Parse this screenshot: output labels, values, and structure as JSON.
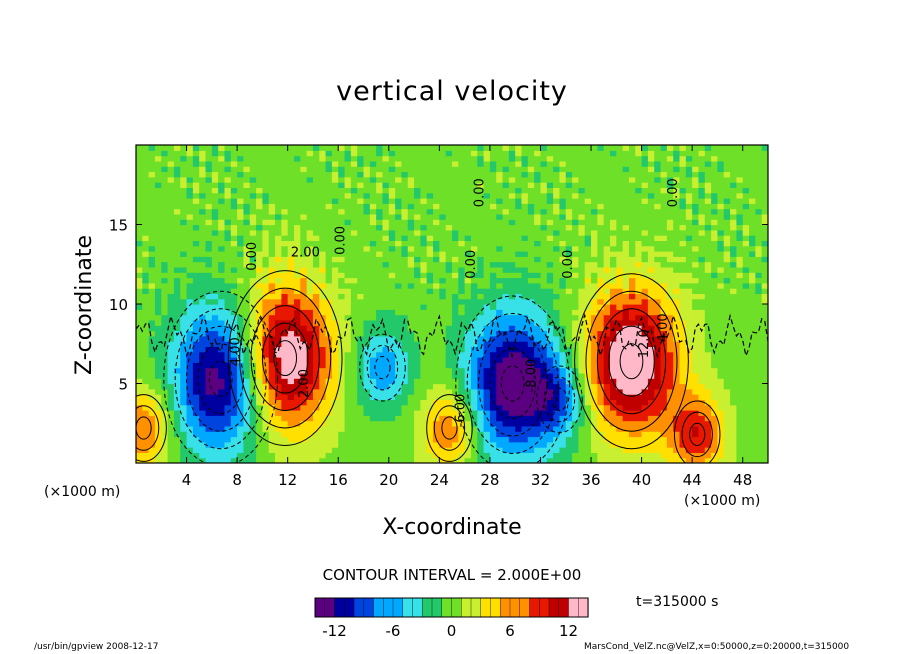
{
  "chart_data": {
    "type": "heatmap",
    "title": "vertical velocity",
    "xlabel": "X-coordinate",
    "ylabel": "Z-coordinate",
    "x_unit_left": "(×1000 m)",
    "x_unit_right": "(×1000 m)",
    "xlim": [
      0,
      50
    ],
    "ylim": [
      0,
      20
    ],
    "x_ticks": [
      4,
      8,
      12,
      16,
      20,
      24,
      28,
      32,
      36,
      40,
      44,
      48
    ],
    "y_ticks": [
      5,
      10,
      15
    ],
    "contour_interval_text": "CONTOUR INTERVAL = 2.000E+00",
    "colorbar": {
      "min": -14,
      "max": 14,
      "ticks": [
        -12,
        -6,
        0,
        6,
        12
      ],
      "colors": [
        "#5a0080",
        "#0000a0",
        "#0044e0",
        "#00a8ff",
        "#38e0e8",
        "#22c86a",
        "#6ee028",
        "#c8f030",
        "#ffe000",
        "#ff9000",
        "#e81800",
        "#c00000",
        "#ffb8c8"
      ]
    },
    "features": [
      {
        "kind": "updraft",
        "x": 11.8,
        "z": 6.6,
        "peak": 15
      },
      {
        "kind": "updraft",
        "x": 39.2,
        "z": 6.4,
        "peak": 15
      },
      {
        "kind": "downdraft",
        "x": 6.7,
        "z": 5.3,
        "peak": -14
      },
      {
        "kind": "downdraft",
        "x": 29.8,
        "z": 5.0,
        "peak": -14
      },
      {
        "kind": "downdraft",
        "x": 19.5,
        "z": 6.0,
        "peak": -7
      },
      {
        "kind": "downdraft",
        "x": 33.5,
        "z": 4.0,
        "peak": -6
      },
      {
        "kind": "updraft",
        "x": 0.6,
        "z": 2.2,
        "peak": 8
      },
      {
        "kind": "updraft",
        "x": 24.8,
        "z": 2.2,
        "peak": 8
      },
      {
        "kind": "updraft",
        "x": 44.4,
        "z": 1.8,
        "peak": 9
      }
    ],
    "contour_labels": [
      {
        "text": "4.00",
        "x": 8.2,
        "z": 7.0,
        "angle": 90
      },
      {
        "text": "2.00",
        "x": 13.6,
        "z": 5.0,
        "angle": 90
      },
      {
        "text": "2.00",
        "x": 13.4,
        "z": 13.0,
        "angle": 0
      },
      {
        "text": "0.00",
        "x": 9.5,
        "z": 13.0,
        "angle": 90
      },
      {
        "text": "0.00",
        "x": 16.5,
        "z": 14.0,
        "angle": 90
      },
      {
        "text": "-8.00",
        "x": 31.6,
        "z": 5.5,
        "angle": 90
      },
      {
        "text": "-6.00",
        "x": 26.0,
        "z": 3.3,
        "angle": 90
      },
      {
        "text": "0.00",
        "x": 26.8,
        "z": 12.5,
        "angle": 90
      },
      {
        "text": "0.00",
        "x": 34.5,
        "z": 12.5,
        "angle": 90
      },
      {
        "text": "0.00",
        "x": 27.5,
        "z": 17.0,
        "angle": 90
      },
      {
        "text": "12.0",
        "x": 40.5,
        "z": 7.5,
        "angle": 90
      },
      {
        "text": "4.00",
        "x": 42.0,
        "z": 8.5,
        "angle": 90
      },
      {
        "text": "0.00",
        "x": 42.8,
        "z": 17.0,
        "angle": 90
      }
    ]
  },
  "time_text": "t=315000 s",
  "footer_left": "/usr/bin/gpview   2008-12-17",
  "footer_right": "MarsCond_VelZ.nc@VelZ,x=0:50000,z=0:20000,t=315000"
}
